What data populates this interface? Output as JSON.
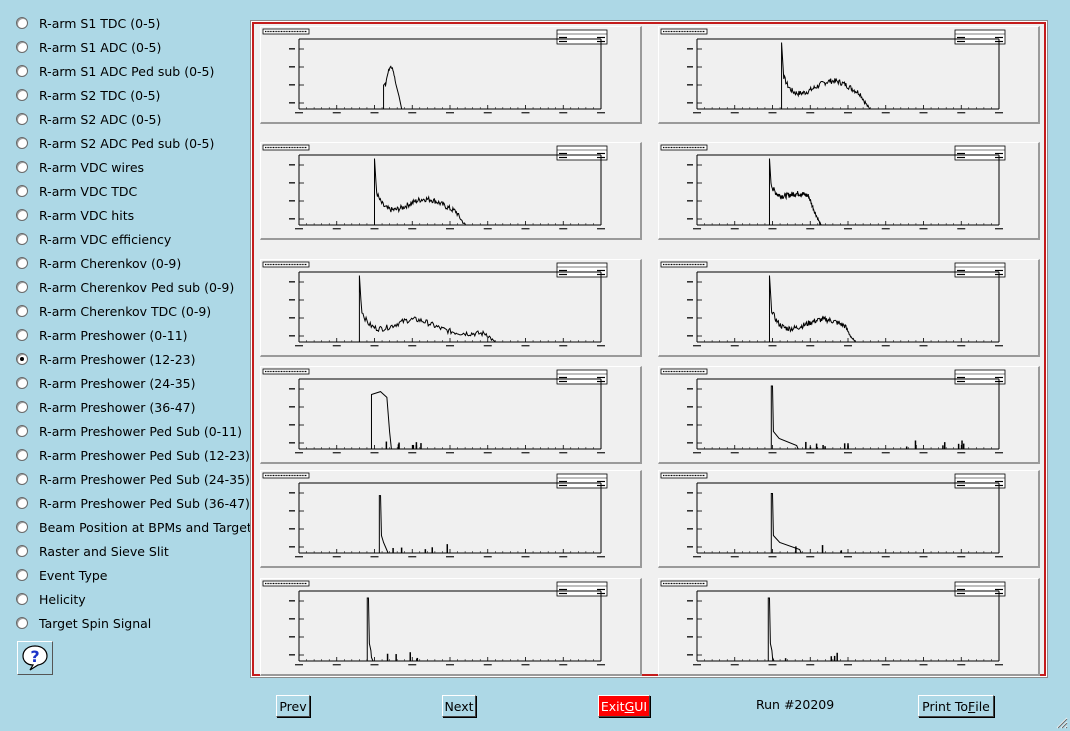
{
  "sidebar": {
    "items": [
      {
        "label": "R-arm S1 TDC (0-5)",
        "checked": false
      },
      {
        "label": "R-arm S1 ADC (0-5)",
        "checked": false
      },
      {
        "label": "R-arm S1 ADC Ped sub (0-5)",
        "checked": false
      },
      {
        "label": "R-arm S2 TDC (0-5)",
        "checked": false
      },
      {
        "label": "R-arm S2 ADC (0-5)",
        "checked": false
      },
      {
        "label": "R-arm S2 ADC Ped sub (0-5)",
        "checked": false
      },
      {
        "label": "R-arm VDC wires",
        "checked": false
      },
      {
        "label": "R-arm VDC TDC",
        "checked": false
      },
      {
        "label": "R-arm VDC hits",
        "checked": false
      },
      {
        "label": "R-arm VDC efficiency",
        "checked": false
      },
      {
        "label": "R-arm Cherenkov (0-9)",
        "checked": false
      },
      {
        "label": "R-arm Cherenkov Ped sub (0-9)",
        "checked": false
      },
      {
        "label": "R-arm Cherenkov TDC (0-9)",
        "checked": false
      },
      {
        "label": "R-arm Preshower (0-11)",
        "checked": false
      },
      {
        "label": "R-arm Preshower (12-23)",
        "checked": true
      },
      {
        "label": "R-arm Preshower (24-35)",
        "checked": false
      },
      {
        "label": "R-arm Preshower (36-47)",
        "checked": false
      },
      {
        "label": "R-arm Preshower Ped Sub (0-11)",
        "checked": false
      },
      {
        "label": "R-arm Preshower Ped Sub (12-23)",
        "checked": false
      },
      {
        "label": "R-arm Preshower Ped Sub (24-35)",
        "checked": false
      },
      {
        "label": "R-arm Preshower Ped Sub (36-47)",
        "checked": false
      },
      {
        "label": "Beam Position at BPMs and Target",
        "checked": false
      },
      {
        "label": "Raster and Sieve Slit",
        "checked": false
      },
      {
        "label": "Event Type",
        "checked": false
      },
      {
        "label": "Helicity",
        "checked": false
      },
      {
        "label": "Target Spin Signal",
        "checked": false
      }
    ],
    "help_icon": "question-mark-icon",
    "help_symbol": "?"
  },
  "toolbar": {
    "prev_label": "Prev",
    "next_label": "Next",
    "exit_pre": "Exit ",
    "exit_u": "G",
    "exit_post": "UI",
    "run_label": "Run #20209",
    "print_pre": "Print To ",
    "print_u": "F",
    "print_post": "ile"
  },
  "colors": {
    "background": "#add8e6",
    "canvas_border": "#c41c1c",
    "exit": "#ff0000"
  },
  "canvas": {
    "layout": "2 columns x 6 rows",
    "histograms": [
      {
        "shape": "peak",
        "peak_start": 0.28,
        "width": 0.06,
        "height": 0.62,
        "spikes": 0
      },
      {
        "shape": "hump",
        "peak_start": 0.28,
        "hump_center": 0.45,
        "hump_height": 0.28,
        "tail_end": 0.6
      },
      {
        "shape": "hump",
        "peak_start": 0.25,
        "hump_center": 0.42,
        "hump_height": 0.25,
        "tail_end": 0.58
      },
      {
        "shape": "hump",
        "peak_start": 0.24,
        "hump_center": 0.34,
        "hump_height": 0.32,
        "tail_end": 0.43
      },
      {
        "shape": "hump",
        "peak_start": 0.2,
        "hump_center": 0.38,
        "hump_height": 0.2,
        "tail_end": 0.68
      },
      {
        "shape": "hump",
        "peak_start": 0.24,
        "hump_center": 0.42,
        "hump_height": 0.2,
        "tail_end": 0.55
      },
      {
        "shape": "block",
        "peak_start": 0.24,
        "width": 0.06,
        "height": 0.82,
        "spikes": 0.45
      },
      {
        "shape": "spike",
        "peak_start": 0.25,
        "height": 0.9,
        "tail": 0.08,
        "spikes": 0.9
      },
      {
        "shape": "spike",
        "peak_start": 0.27,
        "height": 0.82,
        "tail": 0.02,
        "spikes": 0.3
      },
      {
        "shape": "spike",
        "peak_start": 0.25,
        "height": 0.85,
        "tail": 0.09,
        "spikes": 0.15
      },
      {
        "shape": "spike",
        "peak_start": 0.23,
        "height": 0.9,
        "tail": 0.01,
        "spikes": 0.28
      },
      {
        "shape": "spike",
        "peak_start": 0.24,
        "height": 0.9,
        "tail": 0.01,
        "spikes": 0.2
      }
    ]
  }
}
